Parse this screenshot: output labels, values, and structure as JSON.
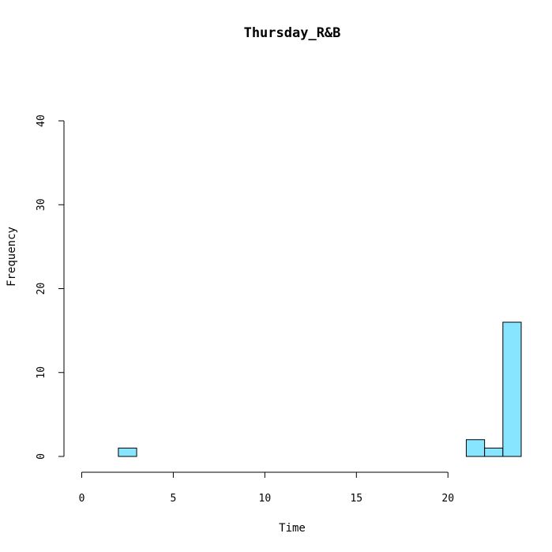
{
  "chart_data": {
    "type": "bar",
    "title": "Thursday_R&B",
    "xlabel": "Time",
    "ylabel": "Frequency",
    "xlim": [
      0,
      24
    ],
    "ylim": [
      0,
      40
    ],
    "x_ticks": [
      0,
      5,
      10,
      15,
      20
    ],
    "y_ticks": [
      0,
      10,
      20,
      30,
      40
    ],
    "bin_width": 1,
    "bins": [
      {
        "start": 0,
        "end": 1,
        "count": 0
      },
      {
        "start": 1,
        "end": 2,
        "count": 0
      },
      {
        "start": 2,
        "end": 3,
        "count": 1
      },
      {
        "start": 3,
        "end": 4,
        "count": 0
      },
      {
        "start": 4,
        "end": 5,
        "count": 0
      },
      {
        "start": 5,
        "end": 6,
        "count": 0
      },
      {
        "start": 6,
        "end": 7,
        "count": 0
      },
      {
        "start": 7,
        "end": 8,
        "count": 0
      },
      {
        "start": 8,
        "end": 9,
        "count": 0
      },
      {
        "start": 9,
        "end": 10,
        "count": 0
      },
      {
        "start": 10,
        "end": 11,
        "count": 0
      },
      {
        "start": 11,
        "end": 12,
        "count": 0
      },
      {
        "start": 12,
        "end": 13,
        "count": 0
      },
      {
        "start": 13,
        "end": 14,
        "count": 0
      },
      {
        "start": 14,
        "end": 15,
        "count": 0
      },
      {
        "start": 15,
        "end": 16,
        "count": 0
      },
      {
        "start": 16,
        "end": 17,
        "count": 0
      },
      {
        "start": 17,
        "end": 18,
        "count": 0
      },
      {
        "start": 18,
        "end": 19,
        "count": 0
      },
      {
        "start": 19,
        "end": 20,
        "count": 0
      },
      {
        "start": 20,
        "end": 21,
        "count": 0
      },
      {
        "start": 21,
        "end": 22,
        "count": 2
      },
      {
        "start": 22,
        "end": 23,
        "count": 1
      },
      {
        "start": 23,
        "end": 24,
        "count": 16
      }
    ],
    "bar_fill": "#87e5ff",
    "bar_stroke": "#000000",
    "grid": false,
    "legend": "none"
  }
}
